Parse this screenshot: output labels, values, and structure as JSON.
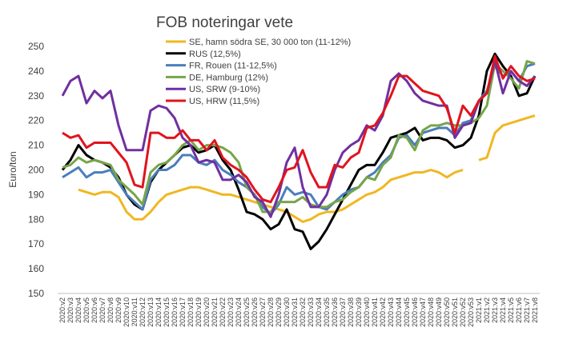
{
  "chart_data": {
    "type": "line",
    "title": "FOB noteringar vete",
    "y_label": "Euro/ton",
    "categories": [
      "2020:v2",
      "2020:v3",
      "2020:v4",
      "2020:v5",
      "2020:v6",
      "2020:v7",
      "2020:v8",
      "2020:v9",
      "2020:v10",
      "2020:v11",
      "2020:v12",
      "2020:v13",
      "2020:v14",
      "2020:v15",
      "2020:v16",
      "2020:v17",
      "2020:v18",
      "2020:v19",
      "2020:v20",
      "2020:v21",
      "2020:v22",
      "2020:v23",
      "2020:v24",
      "2020:v25",
      "2020:v26",
      "2020:v27",
      "2020:v28",
      "2020:v29",
      "2020:v30",
      "2020:v31",
      "2020:v32",
      "2020:v33",
      "2020:v34",
      "2020:v35",
      "2020:v36",
      "2020:v37",
      "2020:v38",
      "2020:v39",
      "2020:v40",
      "2020:v41",
      "2020:v42",
      "2020:v43",
      "2020:v44",
      "2020:v45",
      "2020:v46",
      "2020:v47",
      "2020:v48",
      "2020:v49",
      "2020:v50",
      "2020:v51",
      "2020:v52",
      "2020:v53",
      "2021:v1",
      "2021:v2",
      "2021:v3",
      "2021:v4",
      "2021:v5",
      "2021:v6",
      "2021:v7",
      "2021:v8"
    ],
    "series": [
      {
        "name": "SE, hamn södra SE, 30 000 ton (11-12%)",
        "color": "#f0b722",
        "values": [
          null,
          null,
          192,
          191,
          190,
          191,
          191,
          189,
          183,
          180,
          180,
          183,
          187,
          190,
          191,
          192,
          193,
          193,
          192,
          191,
          190,
          190,
          189,
          188,
          187,
          186,
          185,
          184,
          183,
          181,
          179,
          180,
          182,
          183,
          183,
          184,
          186,
          188,
          190,
          191,
          193,
          196,
          197,
          198,
          199,
          199,
          200,
          199,
          197,
          199,
          200,
          null,
          204,
          205,
          215,
          218,
          219,
          220,
          221,
          222
        ]
      },
      {
        "name": "RUS (12,5%)",
        "color": "#000000",
        "values": [
          200,
          204,
          210,
          206,
          204,
          203,
          201,
          197,
          190,
          186,
          184,
          195,
          200,
          203,
          206,
          209,
          210,
          207,
          208,
          210,
          204,
          200,
          192,
          183,
          182,
          180,
          176,
          178,
          184,
          176,
          175,
          168,
          171,
          176,
          182,
          188,
          194,
          200,
          202,
          202,
          207,
          213,
          214,
          215,
          217,
          212,
          213,
          213,
          212,
          209,
          210,
          213,
          222,
          240,
          247,
          242,
          238,
          230,
          231,
          238
        ]
      },
      {
        "name": "FR, Rouen (11-12,5%)",
        "color": "#4a7ebb",
        "values": [
          197,
          199,
          201,
          197,
          199,
          199,
          200,
          195,
          190,
          187,
          184,
          196,
          200,
          200,
          202,
          206,
          206,
          203,
          202,
          204,
          200,
          198,
          195,
          193,
          190,
          185,
          182,
          186,
          193,
          190,
          191,
          190,
          185,
          184,
          187,
          190,
          192,
          193,
          197,
          199,
          203,
          206,
          213,
          214,
          210,
          215,
          216,
          217,
          217,
          214,
          219,
          220,
          228,
          232,
          242,
          238,
          240,
          236,
          242,
          243
        ]
      },
      {
        "name": "DE, Hamburg (12%)",
        "color": "#77a54a",
        "values": [
          201,
          202,
          205,
          203,
          204,
          203,
          202,
          196,
          193,
          190,
          186,
          199,
          202,
          203,
          206,
          210,
          212,
          208,
          210,
          210,
          209,
          207,
          203,
          193,
          190,
          183,
          183,
          187,
          187,
          187,
          189,
          186,
          185,
          185,
          187,
          188,
          191,
          193,
          197,
          196,
          202,
          205,
          214,
          213,
          208,
          216,
          218,
          218,
          219,
          218,
          218,
          219,
          221,
          226,
          243,
          240,
          237,
          233,
          244,
          243
        ]
      },
      {
        "name": "US, SRW (9-10%)",
        "color": "#7030a0",
        "values": [
          230,
          236,
          238,
          227,
          232,
          229,
          232,
          218,
          208,
          208,
          208,
          224,
          226,
          225,
          221,
          213,
          210,
          203,
          204,
          203,
          196,
          196,
          198,
          195,
          189,
          187,
          181,
          190,
          203,
          209,
          193,
          185,
          185,
          190,
          200,
          207,
          210,
          212,
          218,
          216,
          222,
          236,
          239,
          236,
          231,
          228,
          227,
          226,
          226,
          213,
          218,
          219,
          228,
          231,
          244,
          231,
          240,
          236,
          234,
          238
        ]
      },
      {
        "name": "US, HRW (11,5%)",
        "color": "#e0141e",
        "values": [
          215,
          213,
          214,
          209,
          211,
          211,
          211,
          207,
          203,
          194,
          193,
          215,
          215,
          213,
          213,
          216,
          212,
          212,
          208,
          212,
          205,
          202,
          200,
          197,
          192,
          188,
          187,
          193,
          200,
          201,
          208,
          199,
          193,
          193,
          202,
          201,
          205,
          207,
          217,
          218,
          223,
          230,
          238,
          238,
          235,
          232,
          231,
          230,
          225,
          215,
          226,
          222,
          228,
          231,
          246,
          237,
          242,
          238,
          236,
          237
        ]
      }
    ],
    "ylim": [
      150,
      250
    ],
    "yticks": [
      150,
      160,
      170,
      180,
      190,
      200,
      210,
      220,
      230,
      240,
      250
    ]
  }
}
